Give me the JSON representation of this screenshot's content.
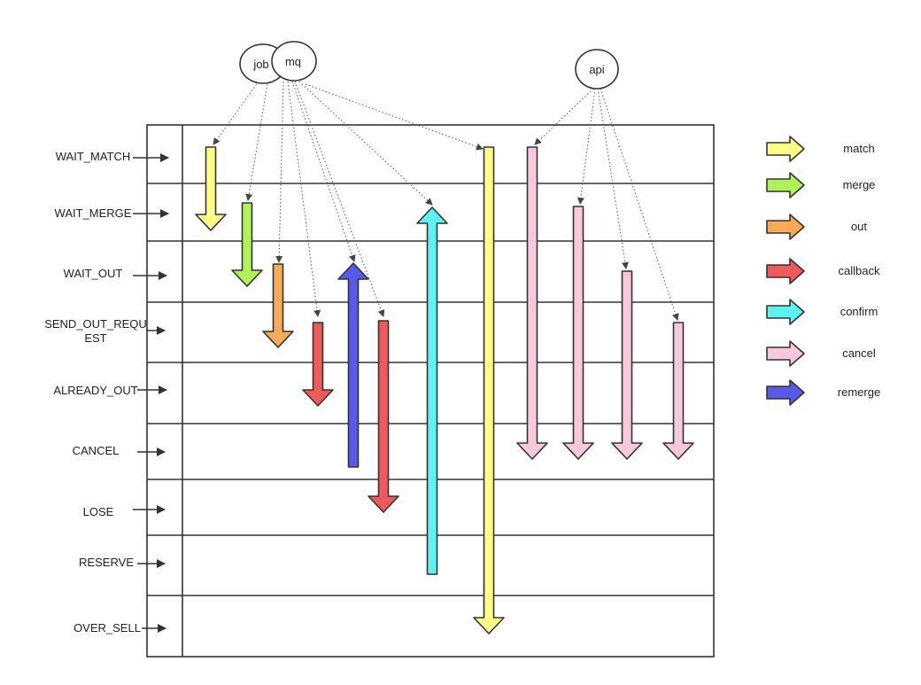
{
  "nodes": {
    "job": "job",
    "mq": "mq",
    "api": "api"
  },
  "states": [
    {
      "line1": "WAIT_MATCH",
      "line2": ""
    },
    {
      "line1": "WAIT_MERGE",
      "line2": ""
    },
    {
      "line1": "WAIT_OUT",
      "line2": ""
    },
    {
      "line1": "SEND_OUT_REQU",
      "line2": "EST"
    },
    {
      "line1": "ALREADY_OUT",
      "line2": ""
    },
    {
      "line1": "CANCEL",
      "line2": ""
    },
    {
      "line1": "LOSE",
      "line2": ""
    },
    {
      "line1": "RESERVE",
      "line2": ""
    },
    {
      "line1": "OVER_SELL",
      "line2": ""
    }
  ],
  "legend": [
    {
      "label": "match",
      "color": "#FFFF88"
    },
    {
      "label": "merge",
      "color": "#B0F25A"
    },
    {
      "label": "out",
      "color": "#F8AC59"
    },
    {
      "label": "callback",
      "color": "#F05A5A"
    },
    {
      "label": "confirm",
      "color": "#5EF2F2"
    },
    {
      "label": "cancel",
      "color": "#F8C8DC"
    },
    {
      "label": "remerge",
      "color": "#5A5AE8"
    }
  ],
  "transitions": [
    {
      "type": "match",
      "from": "WAIT_MATCH",
      "to": "WAIT_MERGE",
      "source": "job"
    },
    {
      "type": "merge",
      "from": "WAIT_MERGE",
      "to": "WAIT_OUT",
      "source": "job"
    },
    {
      "type": "out",
      "from": "WAIT_OUT",
      "to": "SEND_OUT_REQUEST",
      "source": "mq"
    },
    {
      "type": "callback",
      "from": "SEND_OUT_REQUEST",
      "to": "ALREADY_OUT",
      "source": "mq"
    },
    {
      "type": "remerge",
      "from": "CANCEL",
      "to": "WAIT_OUT",
      "source": "mq"
    },
    {
      "type": "callback",
      "from": "SEND_OUT_REQUEST",
      "to": "LOSE",
      "source": "mq"
    },
    {
      "type": "confirm",
      "from": "RESERVE",
      "to": "WAIT_MERGE",
      "source": "mq"
    },
    {
      "type": "match",
      "from": "WAIT_MATCH",
      "to": "OVER_SELL",
      "source": "mq"
    },
    {
      "type": "cancel",
      "from": "WAIT_MATCH",
      "to": "CANCEL",
      "source": "api"
    },
    {
      "type": "cancel",
      "from": "WAIT_MERGE",
      "to": "CANCEL",
      "source": "api"
    },
    {
      "type": "cancel",
      "from": "WAIT_OUT",
      "to": "CANCEL",
      "source": "api"
    },
    {
      "type": "cancel",
      "from": "SEND_OUT_REQUEST",
      "to": "CANCEL",
      "source": "api"
    }
  ]
}
